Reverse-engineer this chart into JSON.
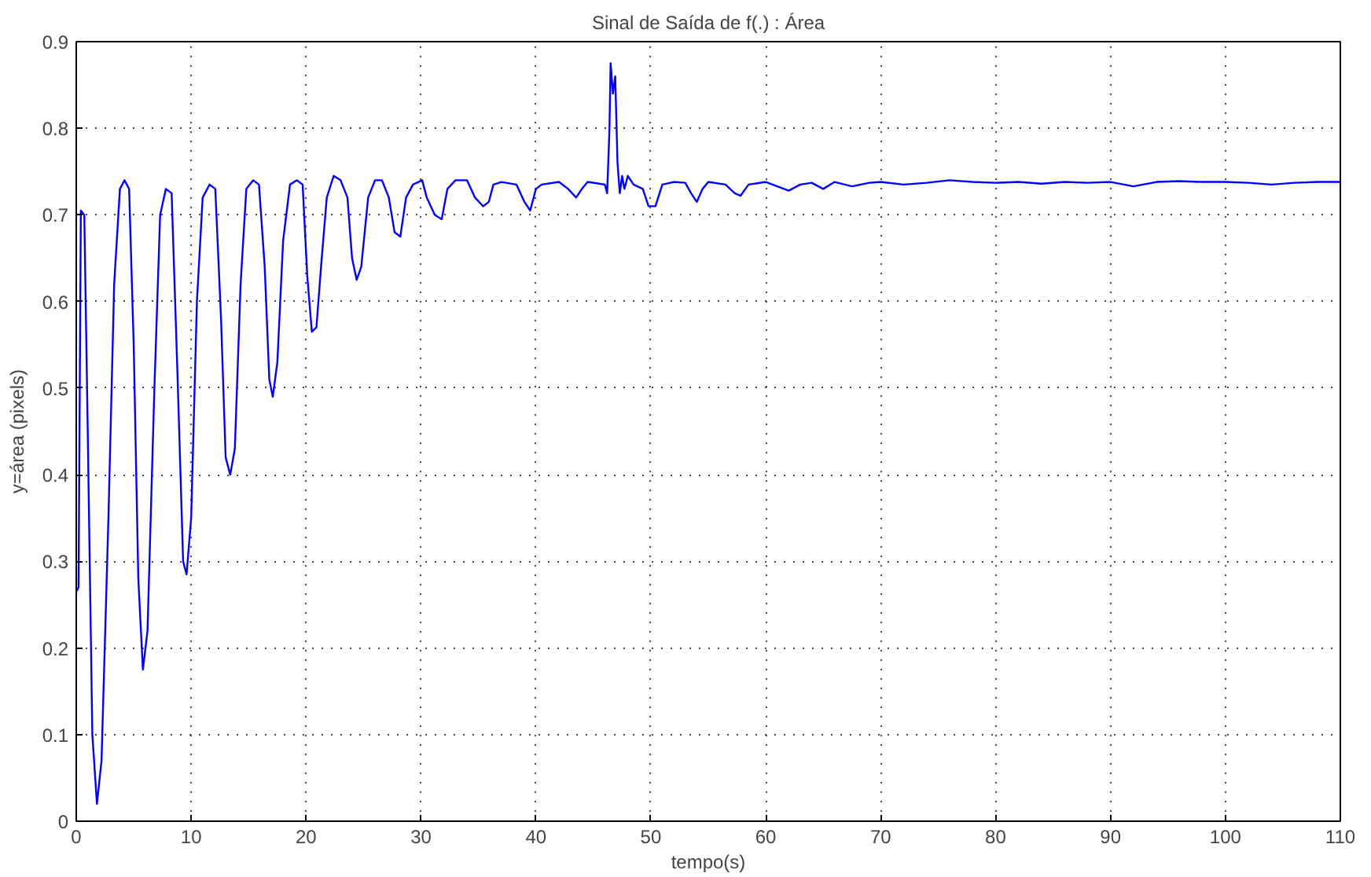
{
  "chart_data": {
    "type": "line",
    "title": "Sinal de Saída de f(.) : Área",
    "xlabel": "tempo(s)",
    "ylabel": "y=área (pixels)",
    "xlim": [
      0,
      110
    ],
    "xticks": [
      0,
      10,
      20,
      30,
      40,
      50,
      60,
      70,
      80,
      90,
      100,
      110
    ],
    "ylim": [
      0,
      0.9
    ],
    "yticks": [
      0,
      0.1,
      0.2,
      0.3,
      0.4,
      0.5,
      0.6,
      0.7,
      0.8,
      0.9
    ],
    "grid": true,
    "line_style": "solid",
    "series": [
      {
        "color": "#0000ff",
        "x": [
          0,
          0.2,
          0.4,
          0.7,
          1.0,
          1.4,
          1.8,
          2.2,
          2.8,
          3.3,
          3.8,
          4.2,
          4.6,
          5.0,
          5.4,
          5.8,
          6.2,
          6.8,
          7.3,
          7.8,
          8.3,
          8.8,
          9.3,
          9.6,
          10.0,
          10.5,
          11.0,
          11.6,
          12.1,
          12.6,
          13.0,
          13.4,
          13.8,
          14.3,
          14.8,
          15.4,
          15.9,
          16.4,
          16.8,
          17.1,
          17.5,
          18.0,
          18.6,
          19.2,
          19.7,
          20.1,
          20.5,
          20.9,
          21.3,
          21.8,
          22.4,
          23.0,
          23.6,
          24.0,
          24.4,
          24.8,
          25.4,
          26.0,
          26.6,
          27.2,
          27.7,
          28.2,
          28.7,
          29.3,
          30.1,
          30.5,
          31.2,
          31.8,
          32.3,
          33.0,
          34.0,
          34.7,
          35.4,
          35.9,
          36.3,
          37.0,
          38.3,
          39.0,
          39.5,
          40.0,
          40.5,
          42.0,
          42.8,
          43.5,
          44.0,
          44.5,
          46.0,
          46.2,
          46.4,
          46.5,
          46.7,
          46.9,
          47.1,
          47.3,
          47.5,
          47.7,
          48.0,
          48.5,
          49.3,
          49.8,
          50.4,
          51.0,
          52.0,
          53.0,
          53.5,
          54.0,
          54.5,
          55.0,
          56.5,
          57.3,
          57.8,
          58.5,
          60,
          61,
          62,
          63,
          64,
          65,
          66,
          67.5,
          69,
          70,
          72,
          74,
          76,
          78,
          80,
          82,
          84,
          86,
          88,
          90,
          92,
          94,
          96,
          98,
          100,
          102,
          104,
          106,
          108,
          110
        ],
        "values": [
          0.265,
          0.27,
          0.705,
          0.7,
          0.45,
          0.1,
          0.02,
          0.07,
          0.35,
          0.62,
          0.73,
          0.74,
          0.73,
          0.55,
          0.28,
          0.175,
          0.22,
          0.5,
          0.7,
          0.73,
          0.725,
          0.52,
          0.3,
          0.285,
          0.35,
          0.6,
          0.72,
          0.735,
          0.73,
          0.58,
          0.42,
          0.4,
          0.43,
          0.62,
          0.73,
          0.74,
          0.735,
          0.64,
          0.51,
          0.49,
          0.53,
          0.67,
          0.735,
          0.74,
          0.735,
          0.63,
          0.565,
          0.57,
          0.64,
          0.72,
          0.745,
          0.74,
          0.72,
          0.65,
          0.625,
          0.64,
          0.72,
          0.74,
          0.74,
          0.72,
          0.68,
          0.675,
          0.72,
          0.735,
          0.74,
          0.72,
          0.7,
          0.695,
          0.73,
          0.74,
          0.74,
          0.72,
          0.71,
          0.715,
          0.735,
          0.738,
          0.735,
          0.715,
          0.705,
          0.73,
          0.735,
          0.738,
          0.73,
          0.72,
          0.73,
          0.738,
          0.735,
          0.725,
          0.8,
          0.875,
          0.84,
          0.86,
          0.76,
          0.725,
          0.745,
          0.73,
          0.745,
          0.735,
          0.73,
          0.71,
          0.71,
          0.735,
          0.738,
          0.737,
          0.725,
          0.715,
          0.73,
          0.738,
          0.735,
          0.725,
          0.722,
          0.735,
          0.738,
          0.733,
          0.728,
          0.735,
          0.737,
          0.73,
          0.738,
          0.733,
          0.737,
          0.738,
          0.735,
          0.737,
          0.74,
          0.738,
          0.737,
          0.738,
          0.736,
          0.738,
          0.737,
          0.738,
          0.733,
          0.738,
          0.739,
          0.738,
          0.738,
          0.737,
          0.735,
          0.737,
          0.738,
          0.738
        ]
      }
    ]
  }
}
